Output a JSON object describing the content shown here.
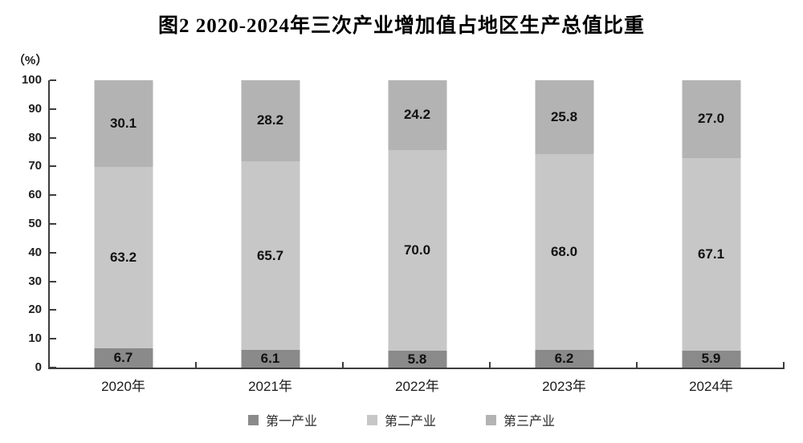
{
  "title": "图2  2020-2024年三次产业增加值占地区生产总值比重",
  "chart_data": {
    "type": "bar",
    "stacked": true,
    "title": "图2  2020-2024年三次产业增加值占地区生产总值比重",
    "unit_label": "（%）",
    "categories": [
      "2020年",
      "2021年",
      "2022年",
      "2023年",
      "2024年"
    ],
    "series": [
      {
        "name": "第一产业",
        "color": "#8a8a8a",
        "values": [
          6.7,
          6.1,
          5.8,
          6.2,
          5.9
        ]
      },
      {
        "name": "第二产业",
        "color": "#c7c7c7",
        "values": [
          63.2,
          65.7,
          70.0,
          68.0,
          67.1
        ]
      },
      {
        "name": "第三产业",
        "color": "#b3b3b3",
        "values": [
          30.1,
          28.2,
          24.2,
          25.8,
          27.0
        ]
      }
    ],
    "xlabel": "",
    "ylabel": "（%）",
    "ylim": [
      0,
      100
    ],
    "ytick_step": 10,
    "grid": false,
    "legend_position": "bottom",
    "axis_color": "#3d3d3d",
    "value_label_decimals": 1
  }
}
